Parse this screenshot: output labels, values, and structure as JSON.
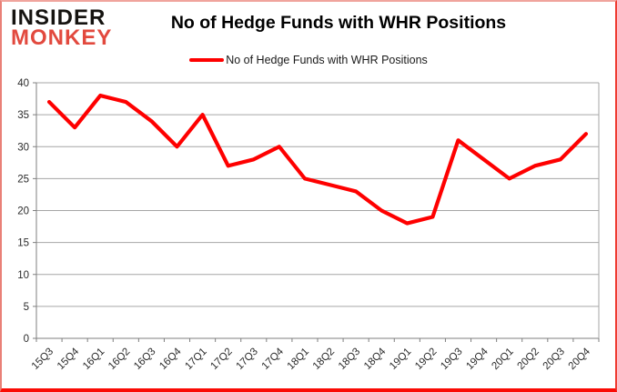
{
  "logo": {
    "line1": "INSIDER",
    "line2": "MONKEY"
  },
  "header": {
    "title": "No of Hedge Funds with WHR Positions"
  },
  "legend": {
    "label": "No of Hedge Funds with WHR Positions"
  },
  "colors": {
    "series": "#fe0000",
    "logo_black": "#151310",
    "logo_red": "#e2493e",
    "gridline": "#a6a6a6",
    "axis": "#7f7f7f",
    "frame_bottom": "#fa0b05"
  },
  "chart_data": {
    "type": "line",
    "title": "No of Hedge Funds with WHR Positions",
    "xlabel": "",
    "ylabel": "",
    "ylim": [
      0,
      40
    ],
    "y_tick_step": 5,
    "grid": true,
    "legend_position": "top",
    "categories": [
      "15Q3",
      "15Q4",
      "16Q1",
      "16Q2",
      "16Q3",
      "16Q4",
      "17Q1",
      "17Q2",
      "17Q3",
      "17Q4",
      "18Q1",
      "18Q2",
      "18Q3",
      "18Q4",
      "19Q1",
      "19Q2",
      "19Q3",
      "19Q4",
      "20Q1",
      "20Q2",
      "20Q3",
      "20Q4"
    ],
    "series": [
      {
        "name": "No of Hedge Funds with WHR Positions",
        "values": [
          37,
          33,
          38,
          37,
          34,
          30,
          35,
          27,
          28,
          30,
          25,
          24,
          23,
          20,
          18,
          19,
          31,
          28,
          25,
          27,
          28,
          32
        ]
      }
    ]
  }
}
